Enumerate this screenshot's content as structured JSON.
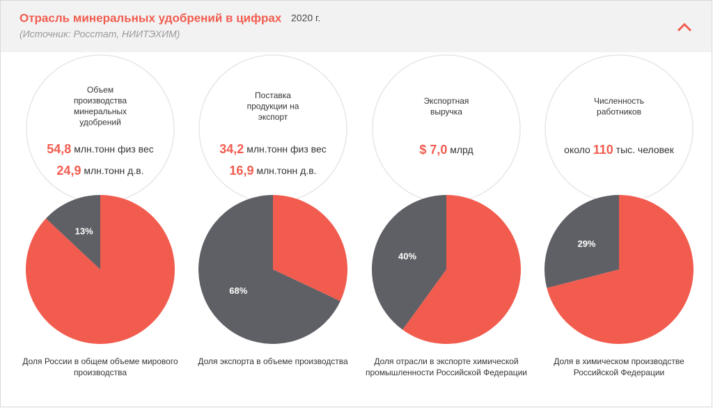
{
  "header": {
    "title": "Отрасль минеральных удобрений в цифрах",
    "year": "2020 г.",
    "source": "(Источник: Росстат, НИИТЭХИМ)"
  },
  "chart_data": [
    {
      "type": "pie",
      "heading": [
        "Объем",
        "производства",
        "минеральных",
        "удобрений"
      ],
      "stats": [
        {
          "value": "54,8",
          "unit": "млн.тонн физ вес"
        },
        {
          "value": "24,9",
          "unit": "млн.тонн д.в."
        }
      ],
      "values": [
        87,
        13
      ],
      "value_labels": [
        null,
        "13%"
      ],
      "colors": [
        "#f25c4f",
        "#5f6065"
      ],
      "caption": [
        "Доля России в общем объеме мирового",
        "производства"
      ]
    },
    {
      "type": "pie",
      "heading": [
        "Поставка",
        "продукции на",
        "экспорт"
      ],
      "stats": [
        {
          "value": "34,2",
          "unit": "млн.тонн физ вес"
        },
        {
          "value": "16,9",
          "unit": "млн.тонн д.в."
        }
      ],
      "values": [
        32,
        68
      ],
      "value_labels": [
        null,
        "68%"
      ],
      "colors": [
        "#f25c4f",
        "#5f6065"
      ],
      "caption": [
        "Доля экспорта в объеме производства"
      ]
    },
    {
      "type": "pie",
      "heading": [
        "Экспортная",
        "выручка"
      ],
      "stats": [
        {
          "value": "$ 7,0",
          "unit": "млрд"
        }
      ],
      "values": [
        60,
        40
      ],
      "value_labels": [
        null,
        "40%"
      ],
      "colors": [
        "#f25c4f",
        "#5f6065"
      ],
      "caption": [
        "Доля отрасли в экспорте химической",
        "промышленности Российской Федерации"
      ]
    },
    {
      "type": "pie",
      "heading": [
        "Численность",
        "работников"
      ],
      "stats": [
        {
          "prefix": "около",
          "value": "110",
          "unit": "тыс. человек"
        }
      ],
      "values": [
        71,
        29
      ],
      "value_labels": [
        null,
        "29%"
      ],
      "colors": [
        "#f25c4f",
        "#5f6065"
      ],
      "caption": [
        "Доля в химическом производстве",
        "Российской Федерации"
      ]
    }
  ]
}
